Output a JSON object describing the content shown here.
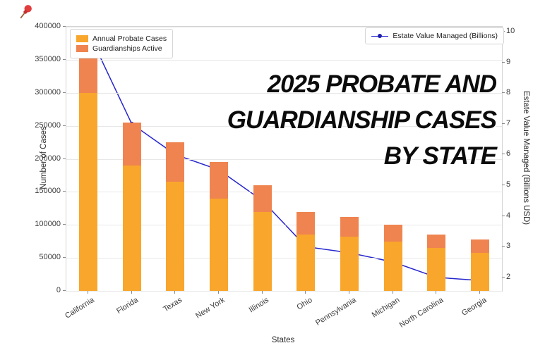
{
  "decorations": {
    "pin_icon": "pushpin-red"
  },
  "chart_data": {
    "type": "bar",
    "title": "2025 Probate and Guardianship Cases by State",
    "title_lines": [
      "2025 PROBATE AND",
      "GUARDIANSHIP CASES",
      "BY STATE"
    ],
    "categories": [
      "California",
      "Florida",
      "Texas",
      "New York",
      "Illinois",
      "Ohio",
      "Pennsylvania",
      "Michigan",
      "North Carolina",
      "Georgia"
    ],
    "series": [
      {
        "name": "Annual Probate Cases",
        "kind": "bar",
        "color": "#F8A62C",
        "values": [
          300000,
          190000,
          165000,
          140000,
          120000,
          85000,
          82000,
          75000,
          65000,
          58000
        ]
      },
      {
        "name": "Guardianships Active",
        "kind": "bar",
        "color": "#EF8450",
        "values": [
          75000,
          65000,
          60000,
          55000,
          40000,
          35000,
          30000,
          25000,
          20000,
          20000
        ]
      },
      {
        "name": "Estate Value Managed (Billions)",
        "kind": "line",
        "color": "#2525CE",
        "marker_color": "#1d1db0",
        "values": [
          10.0,
          7.0,
          6.0,
          5.5,
          4.5,
          3.0,
          2.8,
          2.5,
          2.0,
          1.9
        ]
      }
    ],
    "xlabel": "States",
    "ylabel": "Number of Cases",
    "y2label": "Estate Value Managed (Billions USD)",
    "ylim": [
      0,
      400000
    ],
    "yticks": [
      0,
      50000,
      100000,
      150000,
      200000,
      250000,
      300000,
      350000,
      400000
    ],
    "y2lim": [
      1.56,
      10.16
    ],
    "y2ticks": [
      2,
      3,
      4,
      5,
      6,
      7,
      8,
      9,
      10
    ],
    "grid": true,
    "legend_positions": {
      "bars": "upper-left",
      "line": "upper-right"
    }
  }
}
